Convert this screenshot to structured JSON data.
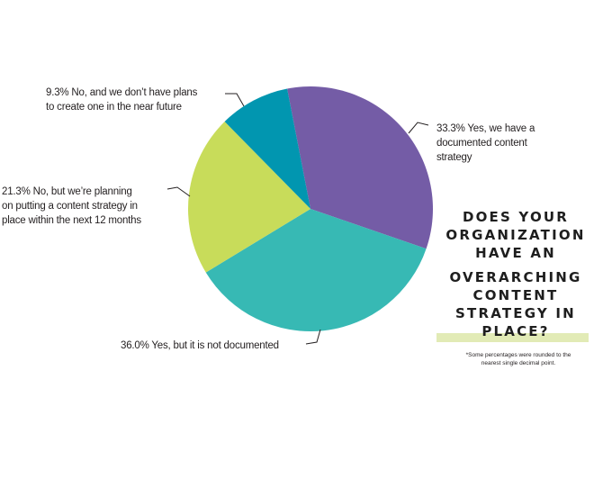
{
  "chart_data": {
    "type": "pie",
    "title": "Does your organization have an overarching content strategy in place?",
    "start_angle_deg": -11,
    "direction": "clockwise",
    "slices": [
      {
        "label": "Yes, we have a documented content strategy",
        "value": 33.3,
        "display": "33.3% Yes, we have a\ndocumented content\nstrategy",
        "color": "#745ca6"
      },
      {
        "label": "Yes, but it is not documented",
        "value": 36.0,
        "display": "36.0% Yes, but it is not documented",
        "color": "#37b9b4"
      },
      {
        "label": "No, but we're planning on putting a content strategy in place within the next 12 months",
        "value": 21.3,
        "display": "21.3% No, but we’re planning\non putting a content strategy in\nplace within the next 12 months",
        "color": "#c8dc5a"
      },
      {
        "label": "No, and we don't have plans to create one in the near future",
        "value": 9.3,
        "display": "9.3% No, and we don’t have plans\nto create one in the near future",
        "color": "#0196b0"
      }
    ],
    "title_lines": [
      "DOES YOUR",
      "ORGANIZATION",
      "HAVE AN",
      "OVERARCHING",
      "CONTENT",
      "STRATEGY IN",
      "PLACE?"
    ],
    "footnote": "*Some percentages were rounded to the\nnearest single decimal point.",
    "highlight_color": "#e2ebb6"
  }
}
